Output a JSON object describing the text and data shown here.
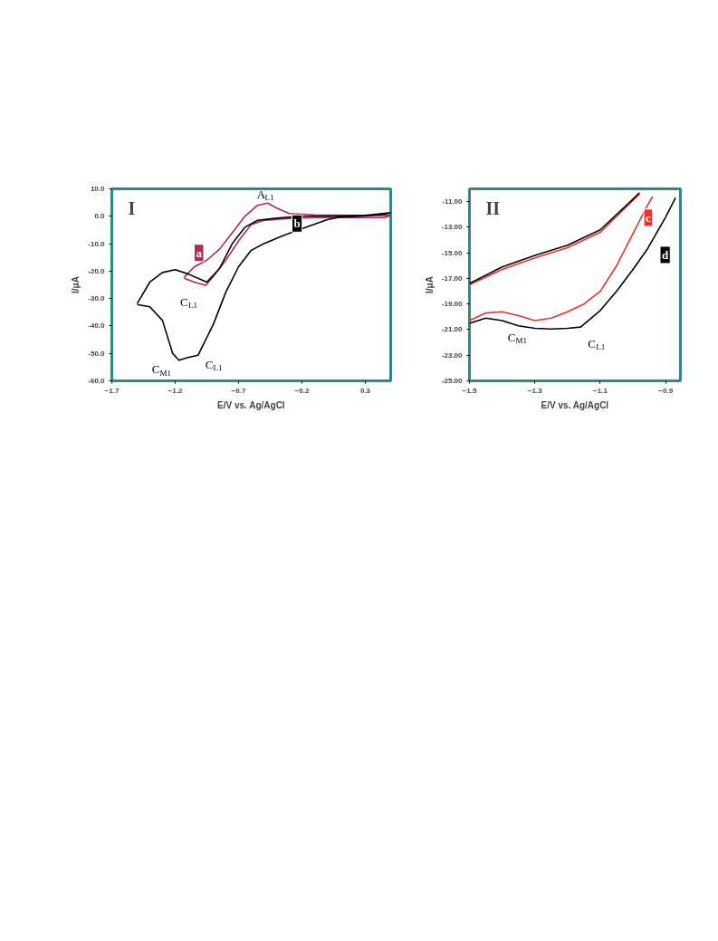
{
  "chart_data": [
    {
      "type": "line",
      "title": "I",
      "xlabel": "E/V vs. Ag/AgCl",
      "ylabel": "I/μA",
      "legend": false,
      "grid": false,
      "xlim": [
        -1.7,
        0.5
      ],
      "ylim": [
        -60,
        10
      ],
      "xticks": [
        -1.7,
        -1.2,
        -0.7,
        -0.2,
        0.3
      ],
      "yticks": [
        {
          "value": 10,
          "label": "10.0"
        },
        {
          "value": 0,
          "label": "0.0"
        },
        {
          "value": -10,
          "label": "-10.0"
        },
        {
          "value": -20,
          "label": "-20.0"
        },
        {
          "value": -30,
          "label": "-30.0"
        },
        {
          "value": -40,
          "label": "-40.0"
        },
        {
          "value": -50,
          "label": "-50.0"
        },
        {
          "value": -60,
          "label": "-60.0"
        }
      ],
      "series": [
        {
          "name": "a",
          "color": "#b02a4c",
          "x": [
            -1.13,
            -1.05,
            -0.95,
            -0.85,
            -0.75,
            -0.65,
            -0.55,
            -0.47,
            -0.4,
            -0.3,
            -0.1,
            0.2,
            0.5,
            0.45,
            0.2,
            -0.1,
            -0.3,
            -0.5,
            -0.6,
            -0.7,
            -0.8,
            -0.9,
            -0.96,
            -1.05,
            -1.13
          ],
          "values": [
            -22.3,
            -18.5,
            -16,
            -12,
            -6,
            0,
            4,
            4.8,
            3,
            1,
            0.5,
            0.3,
            0.3,
            -0.5,
            -0.5,
            -0.5,
            -0.8,
            -1.5,
            -3,
            -9,
            -16,
            -22,
            -25.2,
            -24,
            -22.6
          ]
        },
        {
          "name": "b",
          "color": "#000000",
          "x": [
            -1.5,
            -1.4,
            -1.3,
            -1.2,
            -1.1,
            -1.0,
            -0.95,
            -0.85,
            -0.75,
            -0.65,
            -0.55,
            -0.4,
            -0.2,
            0.0,
            0.3,
            0.5,
            0.45,
            0.3,
            0.1,
            0.0,
            -0.2,
            -0.35,
            -0.5,
            -0.6,
            -0.7,
            -0.8,
            -0.9,
            -1.02,
            -1.1,
            -1.17,
            -1.22,
            -1.3,
            -1.4,
            -1.5
          ],
          "values": [
            -31.8,
            -24,
            -20.5,
            -19.5,
            -21,
            -23,
            -24,
            -19,
            -10,
            -4,
            -1.5,
            -0.7,
            0,
            0,
            0.3,
            1.3,
            0.8,
            0.1,
            -0.3,
            -1.2,
            -4.5,
            -7.1,
            -10,
            -12.4,
            -18.4,
            -27.6,
            -39.5,
            -50.7,
            -51.5,
            -52.5,
            -50,
            -38,
            -33,
            -32.2
          ]
        }
      ],
      "annotations": [
        {
          "text": "A$_{L1}$",
          "x": -0.47,
          "y": 4.8
        },
        {
          "text": "C$_{L1}$",
          "x": -0.96,
          "y": -25.2
        },
        {
          "text": "C$_{M1}$",
          "x": -1.17,
          "y": -52.5
        },
        {
          "text": "C$_{L1}$",
          "x": -1.02,
          "y": -50.7
        }
      ]
    },
    {
      "type": "line",
      "title": "II",
      "xlabel": "E/V vs. Ag/AgCl",
      "ylabel": "I/μA",
      "legend": false,
      "grid": false,
      "xlim": [
        -1.5,
        -0.855
      ],
      "ylim": [
        -25,
        -10
      ],
      "xticks": [
        -1.5,
        -1.3,
        -1.1,
        -0.9
      ],
      "yticks": [
        {
          "value": -11,
          "label": "-11.00"
        },
        {
          "value": -13,
          "label": "-13.00"
        },
        {
          "value": -15,
          "label": "-15.00"
        },
        {
          "value": -17,
          "label": "-17.00"
        },
        {
          "value": -19,
          "label": "-19.00"
        },
        {
          "value": -21,
          "label": "-21.00"
        },
        {
          "value": -23,
          "label": "-23.00"
        },
        {
          "value": -25,
          "label": "-25.00"
        }
      ],
      "series": [
        {
          "name": "c",
          "color": "#e8302f",
          "x": [
            -1.5,
            -1.45,
            -1.4,
            -1.35,
            -1.3,
            -1.25,
            -1.2,
            -1.15,
            -1.1,
            -1.05,
            -1.0,
            -0.96,
            -0.94,
            -0.96,
            -0.98,
            -1.0,
            -1.1,
            -1.2,
            -1.3,
            -1.4,
            -1.5
          ],
          "values": [
            -20.3,
            -19.7,
            -19.6,
            -19.9,
            -20.3,
            -20.1,
            -19.6,
            -19.0,
            -18.0,
            -16.0,
            -13.5,
            -11.5,
            -10.6,
            null,
            -10.4,
            -10.9,
            -13.4,
            -14.6,
            -15.4,
            -16.3,
            -17.5
          ]
        },
        {
          "name": "d",
          "color": "#000000",
          "x": [
            -1.5,
            -1.45,
            -1.4,
            -1.35,
            -1.3,
            -1.25,
            -1.2,
            -1.16,
            -1.1,
            -1.05,
            -1.0,
            -0.956,
            -0.9,
            -0.87,
            -0.96,
            -0.98,
            -1.0,
            -1.1,
            -1.2,
            -1.3,
            -1.4,
            -1.5
          ],
          "values": [
            -20.5,
            -20.1,
            -20.3,
            -20.7,
            -20.9,
            -20.95,
            -20.9,
            -20.8,
            -19.5,
            -18.0,
            -16.3,
            -14.7,
            -12.2,
            -10.7,
            null,
            -10.3,
            -10.8,
            -13.2,
            -14.4,
            -15.2,
            -16.1,
            -17.4
          ]
        }
      ],
      "annotations": [
        {
          "text": "C$_{M1}$",
          "x": -1.3,
          "y": -20.3
        },
        {
          "text": "C$_{L1}$",
          "x": -1.16,
          "y": -20.8
        }
      ]
    }
  ]
}
